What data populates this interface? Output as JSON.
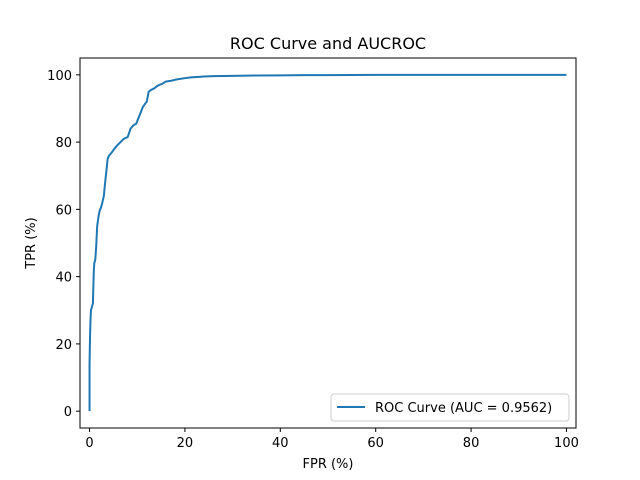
{
  "chart_data": {
    "type": "line",
    "title": "ROC Curve and AUCROC",
    "xlabel": "FPR (%)",
    "ylabel": "TPR (%)",
    "xlim": [
      -2,
      102
    ],
    "ylim": [
      -5,
      105
    ],
    "xticks": [
      0,
      20,
      40,
      60,
      80,
      100
    ],
    "yticks": [
      0,
      20,
      40,
      60,
      80,
      100
    ],
    "grid": false,
    "legend_position": "lower right",
    "series": [
      {
        "name": "ROC Curve (AUC = 0.9562)",
        "color": "#1f77b4",
        "x": [
          0,
          0,
          0.1,
          0.2,
          0.3,
          0.5,
          0.7,
          0.9,
          1.0,
          1.2,
          1.4,
          1.6,
          1.9,
          2.1,
          2.4,
          2.6,
          3.0,
          3.2,
          3.5,
          3.8,
          4.1,
          4.4,
          4.7,
          5.2,
          5.8,
          6.5,
          7.2,
          8.0,
          8.6,
          9.2,
          9.8,
          10.5,
          11.2,
          11.7,
          12.0,
          12.4,
          12.9,
          13.6,
          14.0,
          14.6,
          15.2,
          16.0,
          17.0,
          17.6,
          18.2,
          19.0,
          20.0,
          21.0,
          22.0,
          23.0,
          24.0,
          26.0,
          30.0,
          35.0,
          40.0,
          45.0,
          50.0,
          55.0,
          60.0,
          70.0,
          80.0,
          90.0,
          100.0
        ],
        "y": [
          0,
          14,
          22,
          27,
          30,
          31,
          32,
          42,
          44,
          45,
          49,
          55,
          58,
          59.5,
          60.5,
          61.5,
          64,
          67,
          71,
          75,
          76,
          76.5,
          77,
          78,
          79,
          80,
          81,
          81.5,
          84,
          85,
          85.5,
          88,
          90.5,
          91.5,
          92,
          95,
          95.5,
          96,
          96.5,
          97,
          97.3,
          98,
          98.2,
          98.4,
          98.6,
          98.8,
          99.0,
          99.2,
          99.3,
          99.4,
          99.5,
          99.6,
          99.7,
          99.8,
          99.85,
          99.9,
          99.92,
          99.95,
          99.97,
          99.98,
          99.99,
          100,
          100
        ]
      }
    ]
  }
}
